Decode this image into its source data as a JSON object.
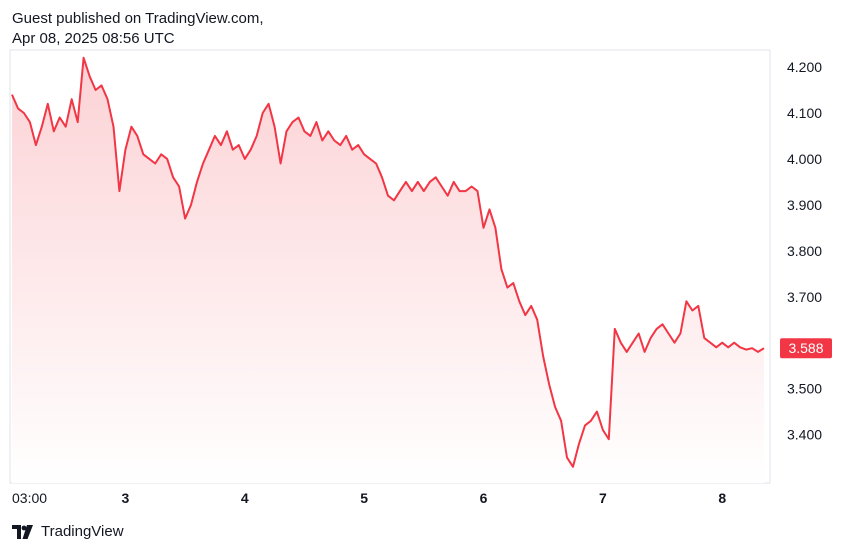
{
  "header": {
    "publisher": "Guest published on TradingView.com,",
    "timestamp": "Apr 08, 2025 08:56 UTC"
  },
  "footer": {
    "brand": "TradingView",
    "logo_icon": "tradingview-logo-icon"
  },
  "colors": {
    "line": "#f23645",
    "fill_top": "#fcd2d5",
    "fill_bottom": "#ffffff",
    "grid_border": "#e0e3eb",
    "price_badge": "#f23645"
  },
  "chart_data": {
    "type": "area",
    "y_ticks": [
      "4.200",
      "4.100",
      "4.000",
      "3.900",
      "3.800",
      "3.700",
      "3.500",
      "3.400"
    ],
    "y_tick_values": [
      4.2,
      4.1,
      4.0,
      3.9,
      3.8,
      3.7,
      3.5,
      3.4
    ],
    "x_ticks": [
      "03:00",
      "3",
      "4",
      "5",
      "6",
      "7",
      "8"
    ],
    "x_tick_values": [
      0,
      0.9,
      1.9,
      2.9,
      3.9,
      4.9,
      5.9
    ],
    "last_price": "3.588",
    "last_value": 3.588,
    "ylim": [
      3.3,
      4.24
    ],
    "xlim": [
      0,
      6.35
    ],
    "x": [
      0.0,
      0.05,
      0.1,
      0.15,
      0.2,
      0.25,
      0.3,
      0.35,
      0.4,
      0.45,
      0.5,
      0.55,
      0.6,
      0.65,
      0.7,
      0.75,
      0.8,
      0.85,
      0.9,
      0.95,
      1.0,
      1.05,
      1.1,
      1.15,
      1.2,
      1.25,
      1.3,
      1.35,
      1.4,
      1.45,
      1.5,
      1.55,
      1.6,
      1.65,
      1.7,
      1.75,
      1.8,
      1.85,
      1.9,
      1.95,
      2.0,
      2.05,
      2.1,
      2.15,
      2.2,
      2.25,
      2.3,
      2.35,
      2.4,
      2.45,
      2.5,
      2.55,
      2.6,
      2.65,
      2.7,
      2.75,
      2.8,
      2.85,
      2.9,
      2.95,
      3.0,
      3.05,
      3.1,
      3.15,
      3.2,
      3.25,
      3.3,
      3.35,
      3.4,
      3.45,
      3.5,
      3.55,
      3.6,
      3.65,
      3.7,
      3.75,
      3.8,
      3.85,
      3.9,
      3.95,
      4.0,
      4.05,
      4.1,
      4.15,
      4.2,
      4.25,
      4.3,
      4.35,
      4.4,
      4.45,
      4.5,
      4.55,
      4.6,
      4.65,
      4.7,
      4.75,
      4.8,
      4.85,
      4.9,
      4.95,
      5.0,
      5.05,
      5.1,
      5.15,
      5.2,
      5.25,
      5.3,
      5.35,
      5.4,
      5.45,
      5.5,
      5.55,
      5.6,
      5.65,
      5.7,
      5.75,
      5.8,
      5.85,
      5.9,
      5.95,
      6.0,
      6.05,
      6.1,
      6.15,
      6.2,
      6.25,
      6.3
    ],
    "values": [
      4.14,
      4.11,
      4.1,
      4.08,
      4.03,
      4.07,
      4.12,
      4.06,
      4.09,
      4.07,
      4.13,
      4.08,
      4.22,
      4.18,
      4.15,
      4.16,
      4.13,
      4.07,
      3.93,
      4.02,
      4.07,
      4.05,
      4.01,
      4.0,
      3.99,
      4.01,
      4.0,
      3.96,
      3.94,
      3.87,
      3.9,
      3.95,
      3.99,
      4.02,
      4.05,
      4.03,
      4.06,
      4.02,
      4.03,
      4.0,
      4.02,
      4.05,
      4.1,
      4.12,
      4.07,
      3.99,
      4.06,
      4.08,
      4.09,
      4.06,
      4.05,
      4.08,
      4.04,
      4.06,
      4.04,
      4.03,
      4.05,
      4.02,
      4.03,
      4.01,
      4.0,
      3.99,
      3.96,
      3.92,
      3.91,
      3.93,
      3.95,
      3.93,
      3.95,
      3.93,
      3.95,
      3.96,
      3.94,
      3.92,
      3.95,
      3.93,
      3.93,
      3.94,
      3.93,
      3.85,
      3.89,
      3.85,
      3.76,
      3.72,
      3.73,
      3.69,
      3.66,
      3.68,
      3.65,
      3.57,
      3.51,
      3.46,
      3.43,
      3.35,
      3.33,
      3.38,
      3.42,
      3.43,
      3.45,
      3.41,
      3.39,
      3.63,
      3.6,
      3.58,
      3.6,
      3.62,
      3.58,
      3.61,
      3.63,
      3.64,
      3.62,
      3.6,
      3.62,
      3.69,
      3.67,
      3.68,
      3.61,
      3.6,
      3.59,
      3.6,
      3.59,
      3.6,
      3.59,
      3.585,
      3.588,
      3.58,
      3.588
    ]
  }
}
